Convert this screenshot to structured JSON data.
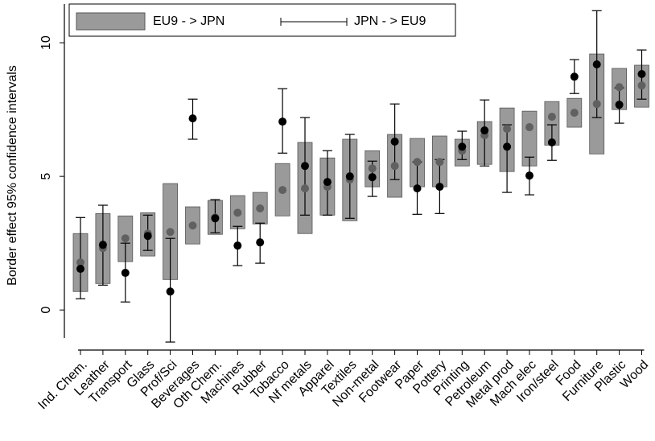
{
  "chart_data": {
    "type": "interval",
    "y_label": "Border effect 95% confidence intervals",
    "categories": [
      "Ind. Chem.",
      "Leather",
      "Transport",
      "Glass",
      "Prof/Sci",
      "Beverages",
      "Oth Chem.",
      "Machines",
      "Rubber",
      "Tobacco",
      "Nf metals",
      "Apparel",
      "Textiles",
      "Non-metal",
      "Footwear",
      "Paper",
      "Pottery",
      "Printing",
      "Petroleum",
      "Metal prod",
      "Mach elec",
      "Iron/steel",
      "Food",
      "Furniture",
      "Plastic",
      "Wood"
    ],
    "series": [
      {
        "name": "EU9 - > JPN",
        "style": "box",
        "color": "#9a9a9a",
        "marker_color": "#606060",
        "values": [
          1.78,
          2.32,
          2.68,
          2.86,
          2.92,
          3.16,
          3.46,
          3.64,
          3.8,
          4.49,
          4.55,
          4.61,
          4.88,
          5.3,
          5.39,
          5.54,
          5.54,
          5.96,
          6.54,
          6.78,
          6.84,
          7.23,
          7.38,
          7.71,
          8.34,
          8.4
        ],
        "lower": [
          0.69,
          0.99,
          1.81,
          2.02,
          1.14,
          2.47,
          2.83,
          3.04,
          3.22,
          3.52,
          2.86,
          3.55,
          3.34,
          4.61,
          4.22,
          4.61,
          4.61,
          5.39,
          5.45,
          5.18,
          5.39,
          6.17,
          6.84,
          5.84,
          7.5,
          7.59
        ],
        "upper": [
          2.86,
          3.61,
          3.52,
          3.64,
          4.73,
          3.86,
          4.1,
          4.28,
          4.4,
          5.48,
          6.27,
          5.69,
          6.39,
          5.96,
          6.57,
          6.42,
          6.51,
          6.39,
          7.05,
          7.56,
          7.44,
          7.8,
          7.92,
          9.58,
          9.04,
          9.16
        ]
      },
      {
        "name": "JPN - > EU9",
        "style": "whisker",
        "color": "#000000",
        "marker_color": "#000000",
        "values": [
          1.54,
          2.44,
          1.39,
          2.77,
          0.69,
          7.17,
          3.43,
          2.41,
          2.53,
          7.05,
          5.39,
          4.79,
          5.0,
          4.97,
          6.3,
          4.55,
          4.61,
          6.11,
          6.72,
          6.11,
          5.03,
          6.27,
          8.73,
          9.19,
          7.68,
          8.83
        ],
        "lower": [
          0.42,
          0.93,
          0.3,
          2.23,
          -1.2,
          6.39,
          2.89,
          1.66,
          1.75,
          5.87,
          3.55,
          3.55,
          3.43,
          4.25,
          4.88,
          3.58,
          3.61,
          5.63,
          5.39,
          4.4,
          4.31,
          5.6,
          8.1,
          7.2,
          6.99,
          7.89
        ],
        "upper": [
          3.46,
          3.92,
          2.5,
          3.55,
          2.68,
          7.89,
          4.13,
          3.13,
          3.25,
          8.28,
          7.2,
          5.96,
          6.57,
          5.57,
          7.71,
          5.54,
          5.63,
          6.69,
          7.86,
          6.93,
          5.72,
          6.93,
          9.37,
          11.2,
          8.31,
          9.73
        ]
      }
    ],
    "ylim": [
      -1.5,
      11.6
    ],
    "yticks": [
      0,
      5,
      10
    ],
    "legend": "upper left"
  }
}
